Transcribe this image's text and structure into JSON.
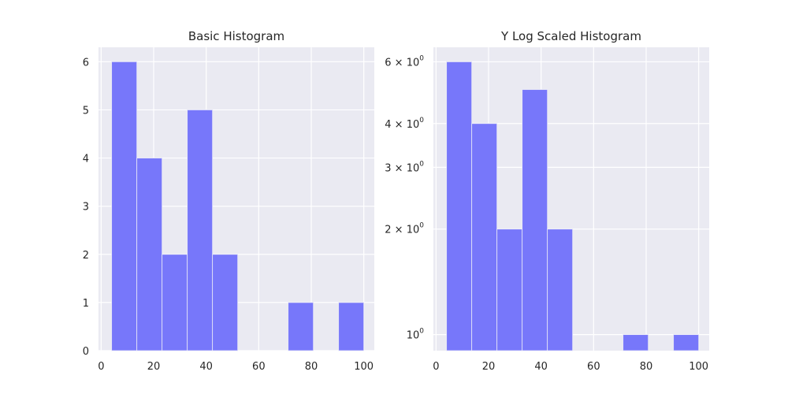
{
  "chart_data": [
    {
      "type": "bar",
      "title": "Basic Histogram",
      "xlabel": "",
      "ylabel": "",
      "xlim": [
        -1,
        104
      ],
      "ylim": [
        0,
        6.3
      ],
      "bins": [
        {
          "x0": 4,
          "x1": 13.6,
          "count": 6
        },
        {
          "x0": 13.6,
          "x1": 23.2,
          "count": 4
        },
        {
          "x0": 23.2,
          "x1": 32.8,
          "count": 2
        },
        {
          "x0": 32.8,
          "x1": 42.4,
          "count": 5
        },
        {
          "x0": 42.4,
          "x1": 52.0,
          "count": 2
        },
        {
          "x0": 52.0,
          "x1": 61.6,
          "count": 0
        },
        {
          "x0": 61.6,
          "x1": 71.2,
          "count": 0
        },
        {
          "x0": 71.2,
          "x1": 80.8,
          "count": 1
        },
        {
          "x0": 80.8,
          "x1": 90.4,
          "count": 0
        },
        {
          "x0": 90.4,
          "x1": 100,
          "count": 1
        }
      ],
      "xticks": [
        0,
        20,
        40,
        60,
        80,
        100
      ],
      "yticks": [
        0,
        1,
        2,
        3,
        4,
        5,
        6
      ],
      "ytick_labels": [
        "0",
        "1",
        "2",
        "3",
        "4",
        "5",
        "6"
      ],
      "yscale": "linear",
      "grid": true,
      "color": "#7777fa"
    },
    {
      "type": "bar",
      "title": "Y Log Scaled Histogram",
      "xlabel": "",
      "ylabel": "",
      "xlim": [
        -1,
        104
      ],
      "ylim": [
        0.9,
        6.6
      ],
      "bins": [
        {
          "x0": 4,
          "x1": 13.6,
          "count": 6
        },
        {
          "x0": 13.6,
          "x1": 23.2,
          "count": 4
        },
        {
          "x0": 23.2,
          "x1": 32.8,
          "count": 2
        },
        {
          "x0": 32.8,
          "x1": 42.4,
          "count": 5
        },
        {
          "x0": 42.4,
          "x1": 52.0,
          "count": 2
        },
        {
          "x0": 52.0,
          "x1": 61.6,
          "count": 0
        },
        {
          "x0": 61.6,
          "x1": 71.2,
          "count": 0
        },
        {
          "x0": 71.2,
          "x1": 80.8,
          "count": 1
        },
        {
          "x0": 80.8,
          "x1": 90.4,
          "count": 0
        },
        {
          "x0": 90.4,
          "x1": 100,
          "count": 1
        }
      ],
      "xticks": [
        0,
        20,
        40,
        60,
        80,
        100
      ],
      "yticks": [
        1,
        2,
        3,
        4,
        6
      ],
      "ytick_labels": [
        {
          "mantissa": "",
          "base": "10",
          "exp": "0"
        },
        {
          "mantissa": "2 × ",
          "base": "10",
          "exp": "0"
        },
        {
          "mantissa": "3 × ",
          "base": "10",
          "exp": "0"
        },
        {
          "mantissa": "4 × ",
          "base": "10",
          "exp": "0"
        },
        {
          "mantissa": "6 × ",
          "base": "10",
          "exp": "0"
        }
      ],
      "yscale": "log",
      "grid": true,
      "color": "#7777fa"
    }
  ]
}
